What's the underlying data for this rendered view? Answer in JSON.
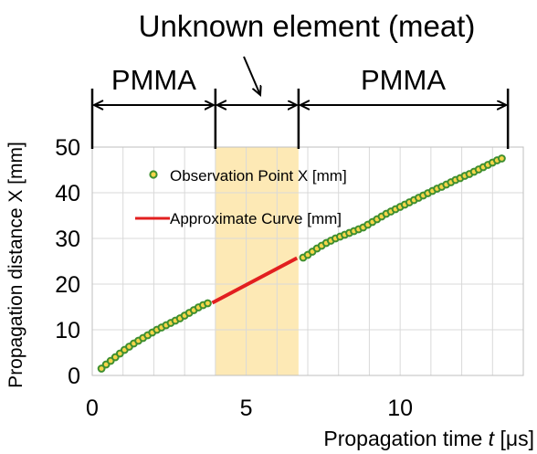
{
  "chart_data": {
    "type": "scatter",
    "title": "",
    "xlabel": "Propagation time t [μs]",
    "xlabel_parts": {
      "before": "Propagation  time ",
      "italic": "t",
      "after": " [μs]"
    },
    "ylabel": "Propagation distance X [mm]",
    "xlim": [
      0,
      14
    ],
    "ylim": [
      0,
      50
    ],
    "xticks": [
      0,
      5,
      10
    ],
    "yticks": [
      0,
      10,
      20,
      30,
      40,
      50
    ],
    "grid": true,
    "legend_position": "top-left",
    "region_header": "Unknown element (meat)",
    "regions": [
      {
        "label": "PMMA",
        "x_from": 0.0,
        "x_to": 4.0
      },
      {
        "label": "",
        "x_from": 4.0,
        "x_to": 6.7
      },
      {
        "label": "PMMA",
        "x_from": 6.7,
        "x_to": 13.5
      }
    ],
    "highlight": {
      "x_from": 4.0,
      "x_to": 6.7,
      "color": "#fde9b5"
    },
    "colors": {
      "point_fill": "#f6d54a",
      "point_edge": "#3f8f2f",
      "curve": "#e21f1f"
    },
    "series": [
      {
        "name": "Observation Point X [mm]",
        "kind": "points",
        "points": [
          [
            0.3,
            1.5
          ],
          [
            0.45,
            2.4
          ],
          [
            0.6,
            3.2
          ],
          [
            0.75,
            4.0
          ],
          [
            0.9,
            4.8
          ],
          [
            1.05,
            5.6
          ],
          [
            1.2,
            6.3
          ],
          [
            1.35,
            7.0
          ],
          [
            1.5,
            7.6
          ],
          [
            1.65,
            8.2
          ],
          [
            1.8,
            8.8
          ],
          [
            1.95,
            9.4
          ],
          [
            2.1,
            10.0
          ],
          [
            2.25,
            10.5
          ],
          [
            2.4,
            11.0
          ],
          [
            2.55,
            11.5
          ],
          [
            2.7,
            12.0
          ],
          [
            2.85,
            12.5
          ],
          [
            3.0,
            13.1
          ],
          [
            3.15,
            13.7
          ],
          [
            3.3,
            14.3
          ],
          [
            3.45,
            14.9
          ],
          [
            3.6,
            15.4
          ],
          [
            3.75,
            15.8
          ],
          [
            6.85,
            25.8
          ],
          [
            7.0,
            26.4
          ],
          [
            7.15,
            27.1
          ],
          [
            7.3,
            27.8
          ],
          [
            7.45,
            28.4
          ],
          [
            7.6,
            29.0
          ],
          [
            7.75,
            29.5
          ],
          [
            7.9,
            30.0
          ],
          [
            8.05,
            30.4
          ],
          [
            8.2,
            30.8
          ],
          [
            8.35,
            31.2
          ],
          [
            8.5,
            31.6
          ],
          [
            8.65,
            32.0
          ],
          [
            8.8,
            32.4
          ],
          [
            8.95,
            33.0
          ],
          [
            9.1,
            33.6
          ],
          [
            9.25,
            34.2
          ],
          [
            9.4,
            34.8
          ],
          [
            9.55,
            35.4
          ],
          [
            9.7,
            35.9
          ],
          [
            9.85,
            36.4
          ],
          [
            10.0,
            36.9
          ],
          [
            10.15,
            37.4
          ],
          [
            10.3,
            37.9
          ],
          [
            10.45,
            38.4
          ],
          [
            10.6,
            38.9
          ],
          [
            10.75,
            39.4
          ],
          [
            10.9,
            39.9
          ],
          [
            11.05,
            40.4
          ],
          [
            11.2,
            40.9
          ],
          [
            11.35,
            41.3
          ],
          [
            11.5,
            41.8
          ],
          [
            11.65,
            42.3
          ],
          [
            11.8,
            42.8
          ],
          [
            11.95,
            43.2
          ],
          [
            12.1,
            43.7
          ],
          [
            12.25,
            44.1
          ],
          [
            12.4,
            44.6
          ],
          [
            12.55,
            45.1
          ],
          [
            12.7,
            45.6
          ],
          [
            12.85,
            46.1
          ],
          [
            13.0,
            46.6
          ],
          [
            13.15,
            47.1
          ],
          [
            13.3,
            47.5
          ]
        ]
      },
      {
        "name": "Approximate Curve [mm]",
        "kind": "line",
        "points": [
          [
            3.9,
            15.9
          ],
          [
            6.65,
            25.7
          ]
        ]
      }
    ]
  }
}
